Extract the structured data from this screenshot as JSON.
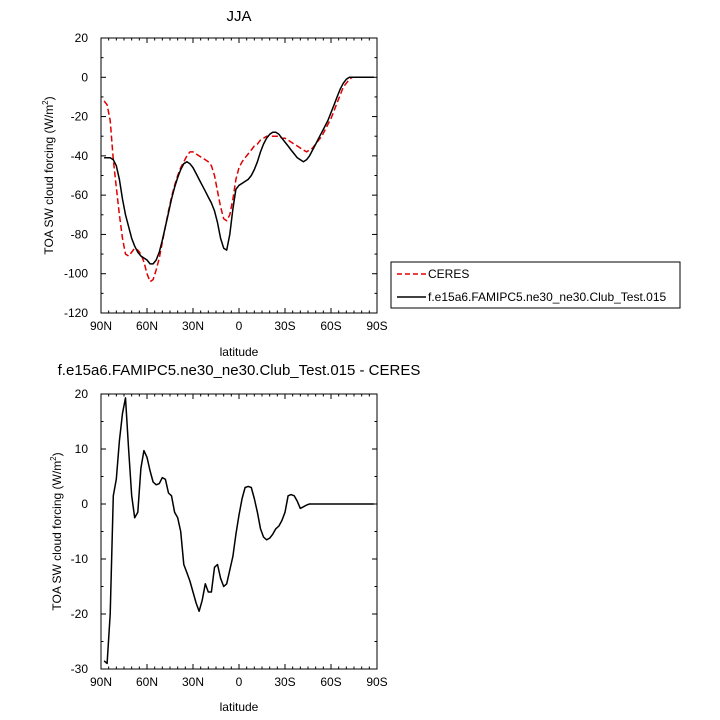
{
  "chart_data": [
    {
      "type": "line",
      "title": "JJA",
      "xlabel": "latitude",
      "ylabel": "TOA SW cloud forcing (W/m",
      "ylabel_sup": "2",
      "ylabel_close": ")",
      "xlim": [
        90,
        -90
      ],
      "ylim": [
        -120,
        20
      ],
      "xticks": [
        90,
        60,
        30,
        0,
        -30,
        -60,
        -90
      ],
      "xtick_labels": [
        "90N",
        "60N",
        "30N",
        "0",
        "30S",
        "60S",
        "90S"
      ],
      "yticks": [
        -120,
        -100,
        -80,
        -60,
        -40,
        -20,
        0,
        20
      ],
      "ytick_labels": [
        "-120",
        "-100",
        "-80",
        "-60",
        "-40",
        "-20",
        "0",
        "20"
      ],
      "legend_position": "right",
      "series": [
        {
          "name": "CERES",
          "color": "#e00000",
          "dash": "dashed",
          "x": [
            88,
            86,
            84,
            82,
            80,
            78,
            76,
            74,
            72,
            70,
            68,
            66,
            64,
            62,
            60,
            58,
            56,
            54,
            52,
            50,
            48,
            46,
            44,
            42,
            40,
            38,
            36,
            34,
            32,
            30,
            28,
            26,
            24,
            22,
            20,
            18,
            16,
            14,
            12,
            10,
            8,
            6,
            4,
            2,
            0,
            -2,
            -4,
            -6,
            -8,
            -10,
            -12,
            -14,
            -16,
            -18,
            -20,
            -22,
            -24,
            -26,
            -28,
            -30,
            -32,
            -34,
            -36,
            -38,
            -40,
            -42,
            -44,
            -46,
            -48,
            -50,
            -52,
            -54,
            -56,
            -58,
            -60,
            -62,
            -64,
            -66,
            -68,
            -70,
            -72,
            -74,
            -76,
            -78,
            -80,
            -82,
            -84,
            -86,
            -88
          ],
          "y": [
            -12,
            -14,
            -22,
            -42,
            -56,
            -70,
            -82,
            -90,
            -91,
            -89,
            -87,
            -88,
            -90,
            -94,
            -100,
            -104,
            -103,
            -98,
            -92,
            -84,
            -76,
            -68,
            -61,
            -55,
            -50,
            -46,
            -43,
            -40,
            -38,
            -38,
            -39,
            -40,
            -41,
            -42,
            -43,
            -45,
            -50,
            -58,
            -66,
            -72,
            -73,
            -70,
            -62,
            -52,
            -46,
            -43,
            -41,
            -39,
            -37,
            -35,
            -34,
            -32,
            -31,
            -30,
            -30,
            -30,
            -30,
            -30,
            -31,
            -31,
            -32,
            -33,
            -34,
            -35,
            -36,
            -37,
            -38,
            -37,
            -36,
            -34,
            -32,
            -30,
            -27,
            -24,
            -21,
            -17,
            -13,
            -9,
            -5,
            -3,
            -1,
            0,
            0,
            0,
            0,
            0,
            0,
            0,
            0
          ]
        },
        {
          "name": "f.e15a6.FAMIPC5.ne30_ne30.Club_Test.015",
          "color": "#000000",
          "dash": "solid",
          "x": [
            88,
            86,
            84,
            82,
            80,
            78,
            76,
            74,
            72,
            70,
            68,
            66,
            64,
            62,
            60,
            58,
            56,
            54,
            52,
            50,
            48,
            46,
            44,
            42,
            40,
            38,
            36,
            34,
            32,
            30,
            28,
            26,
            24,
            22,
            20,
            18,
            16,
            14,
            12,
            10,
            8,
            6,
            4,
            2,
            0,
            -2,
            -4,
            -6,
            -8,
            -10,
            -12,
            -14,
            -16,
            -18,
            -20,
            -22,
            -24,
            -26,
            -28,
            -30,
            -32,
            -34,
            -36,
            -38,
            -40,
            -42,
            -44,
            -46,
            -48,
            -50,
            -52,
            -54,
            -56,
            -58,
            -60,
            -62,
            -64,
            -66,
            -68,
            -70,
            -72,
            -74,
            -76,
            -78,
            -80,
            -82,
            -84,
            -86,
            -88
          ],
          "y": [
            -41,
            -41,
            -41,
            -42,
            -45,
            -52,
            -62,
            -70,
            -76,
            -82,
            -86,
            -89,
            -91,
            -92,
            -93,
            -95,
            -95,
            -93,
            -89,
            -83,
            -76,
            -69,
            -62,
            -56,
            -51,
            -47,
            -44,
            -43,
            -44,
            -46,
            -49,
            -52,
            -55,
            -58,
            -61,
            -64,
            -68,
            -74,
            -82,
            -87,
            -88,
            -80,
            -67,
            -57,
            -55,
            -54,
            -53,
            -52,
            -50,
            -47,
            -43,
            -38,
            -34,
            -31,
            -29,
            -28,
            -28,
            -29,
            -31,
            -33,
            -35,
            -37,
            -39,
            -41,
            -42,
            -43,
            -42,
            -40,
            -37,
            -34,
            -31,
            -28,
            -25,
            -22,
            -18,
            -14,
            -10,
            -6,
            -3,
            -1,
            0,
            0,
            0,
            0,
            0,
            0,
            0,
            0,
            0
          ]
        }
      ]
    },
    {
      "type": "line",
      "title": "f.e15a6.FAMIPC5.ne30_ne30.Club_Test.015 - CERES",
      "xlabel": "latitude",
      "ylabel": "TOA SW cloud forcing (W/m",
      "ylabel_sup": "2",
      "ylabel_close": ")",
      "xlim": [
        90,
        -90
      ],
      "ylim": [
        -30,
        20
      ],
      "xticks": [
        90,
        60,
        30,
        0,
        -30,
        -60,
        -90
      ],
      "xtick_labels": [
        "90N",
        "60N",
        "30N",
        "0",
        "30S",
        "60S",
        "90S"
      ],
      "yticks": [
        -30,
        -20,
        -10,
        0,
        10,
        20
      ],
      "ytick_labels": [
        "-30",
        "-20",
        "-10",
        "0",
        "10",
        "20"
      ],
      "series": [
        {
          "color": "#000000",
          "dash": "solid",
          "x": [
            88,
            86,
            84,
            82,
            80,
            78,
            76,
            74,
            72,
            70,
            68,
            66,
            64,
            62,
            60,
            58,
            56,
            54,
            52,
            50,
            48,
            46,
            44,
            42,
            40,
            38,
            36,
            34,
            32,
            30,
            28,
            26,
            24,
            22,
            20,
            18,
            16,
            14,
            12,
            10,
            8,
            6,
            4,
            2,
            0,
            -2,
            -4,
            -6,
            -8,
            -10,
            -12,
            -14,
            -16,
            -18,
            -20,
            -22,
            -24,
            -26,
            -28,
            -30,
            -32,
            -34,
            -36,
            -38,
            -40,
            -42,
            -44,
            -46,
            -48,
            -50,
            -52,
            -54,
            -56,
            -58,
            -60,
            -62,
            -64,
            -66,
            -68,
            -70,
            -72,
            -74,
            -76,
            -78,
            -80,
            -82,
            -84,
            -86,
            -88
          ],
          "y": [
            -28.5,
            -29,
            -20,
            1.5,
            4.5,
            11.5,
            16.5,
            19.3,
            10,
            1.5,
            -2.5,
            -1.5,
            6.5,
            9.7,
            8.5,
            6,
            4,
            3.5,
            3.7,
            4.8,
            4.5,
            2,
            1.5,
            -1.5,
            -2.5,
            -5,
            -11,
            -12.5,
            -14,
            -16,
            -18,
            -19.5,
            -17.5,
            -14.5,
            -16,
            -16,
            -11.5,
            -11,
            -13.5,
            -15,
            -14.5,
            -12,
            -9.5,
            -5.5,
            -2,
            1,
            3,
            3.2,
            3,
            1,
            -1.5,
            -4.5,
            -6,
            -6.5,
            -6.2,
            -5.5,
            -4.5,
            -4,
            -3,
            -1.5,
            1.5,
            1.7,
            1.5,
            0.5,
            -0.8,
            -0.5,
            -0.2,
            0,
            0,
            0,
            0,
            0,
            0,
            0,
            0,
            0,
            0,
            0,
            0,
            0,
            0,
            0,
            0,
            0,
            0,
            0,
            0,
            0,
            0
          ]
        }
      ]
    }
  ]
}
